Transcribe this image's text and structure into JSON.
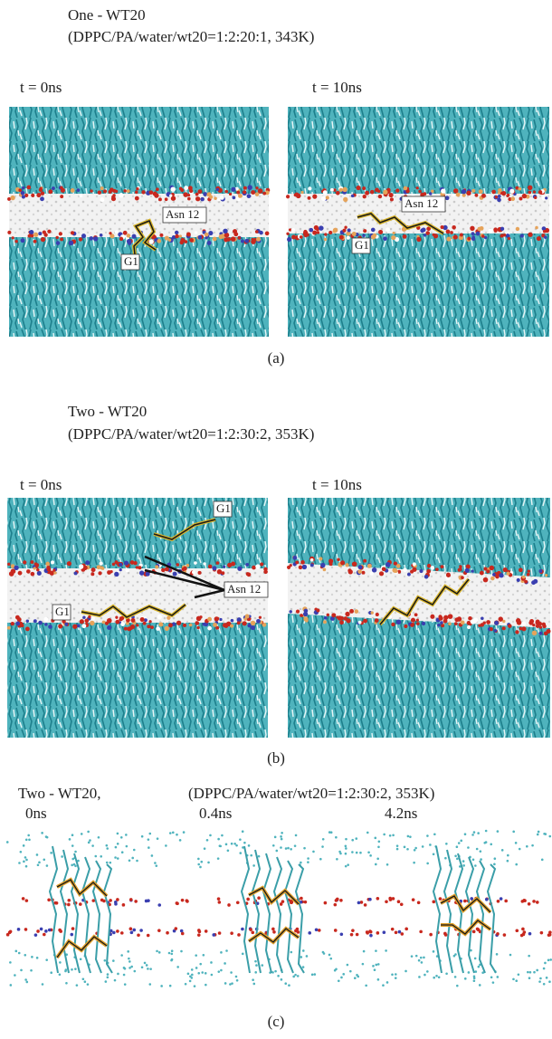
{
  "panels": [
    {
      "title": "One - WT20",
      "subtitle": "(DPPC/PA/water/wt20=1:2:20:1, 343K)",
      "frames": [
        {
          "time": "t = 0ns",
          "labels": [
            "Asn 12",
            "G1"
          ]
        },
        {
          "time": "t = 10ns",
          "labels": [
            "Asn 12",
            "G1"
          ]
        }
      ],
      "caption": "(a)"
    },
    {
      "title": "Two - WT20",
      "subtitle": "(DPPC/PA/water/wt20=1:2:30:2, 353K)",
      "frames": [
        {
          "time": "t = 0ns",
          "labels": [
            "G1",
            "Asn 12",
            "G1"
          ]
        },
        {
          "time": "t = 10ns"
        }
      ],
      "caption": "(b)"
    },
    {
      "title": "Two - WT20,",
      "subtitle": "(DPPC/PA/water/wt20=1:2:30:2, 353K)",
      "frames": [
        {
          "time": "0ns"
        },
        {
          "time": "0.4ns"
        },
        {
          "time": "4.2ns"
        }
      ],
      "caption": "(c)"
    }
  ]
}
